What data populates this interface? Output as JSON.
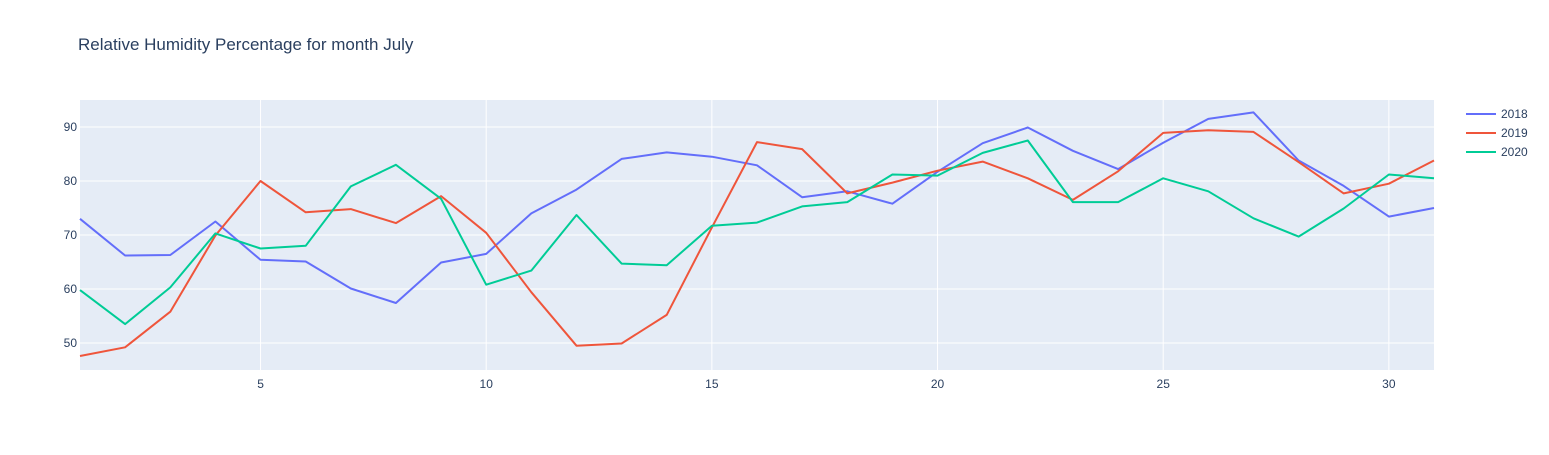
{
  "chart_data": {
    "type": "line",
    "title": "Relative Humidity Percentage for month July",
    "xlabel": "",
    "ylabel": "",
    "xlim": [
      1,
      31
    ],
    "ylim": [
      45,
      95
    ],
    "xticks": [
      5,
      10,
      15,
      20,
      25,
      30
    ],
    "yticks": [
      50,
      60,
      70,
      80,
      90
    ],
    "grid": true,
    "legend_position": "top-right",
    "background_color": "#e5ecf6",
    "grid_color": "#ffffff",
    "x": [
      1,
      2,
      3,
      4,
      5,
      6,
      7,
      8,
      9,
      10,
      11,
      12,
      13,
      14,
      15,
      16,
      17,
      18,
      19,
      20,
      21,
      22,
      23,
      24,
      25,
      26,
      27,
      28,
      29,
      30,
      31
    ],
    "series": [
      {
        "name": "2018",
        "color": "#636efa",
        "values": [
          73,
          66.2,
          66.3,
          72.5,
          65.4,
          65.1,
          60.1,
          57.4,
          64.9,
          66.5,
          74,
          78.4,
          84.1,
          85.3,
          84.5,
          82.9,
          77,
          78.1,
          75.8,
          81.7,
          87,
          89.9,
          85.6,
          82.2,
          87.1,
          91.5,
          92.7,
          83.8,
          79.1,
          73.4,
          75
        ]
      },
      {
        "name": "2019",
        "color": "#ef553b",
        "values": [
          47.6,
          49.2,
          55.8,
          69.9,
          80,
          74.2,
          74.8,
          72.2,
          77.2,
          70.4,
          59.4,
          49.5,
          49.9,
          55.2,
          71.4,
          87.2,
          85.9,
          77.7,
          79.7,
          81.9,
          83.6,
          80.5,
          76.5,
          81.8,
          88.9,
          89.4,
          89.1,
          83.5,
          77.7,
          79.5,
          83.8
        ]
      },
      {
        "name": "2020",
        "color": "#00cc96",
        "values": [
          59.8,
          53.5,
          60.3,
          70.3,
          67.5,
          68,
          79,
          83,
          76.7,
          60.8,
          63.4,
          73.7,
          64.7,
          64.4,
          71.7,
          72.3,
          75.3,
          76.1,
          81.2,
          81,
          85.2,
          87.5,
          76.1,
          76.1,
          80.5,
          78.1,
          73.1,
          69.7,
          74.9,
          81.2,
          80.5
        ]
      }
    ]
  }
}
